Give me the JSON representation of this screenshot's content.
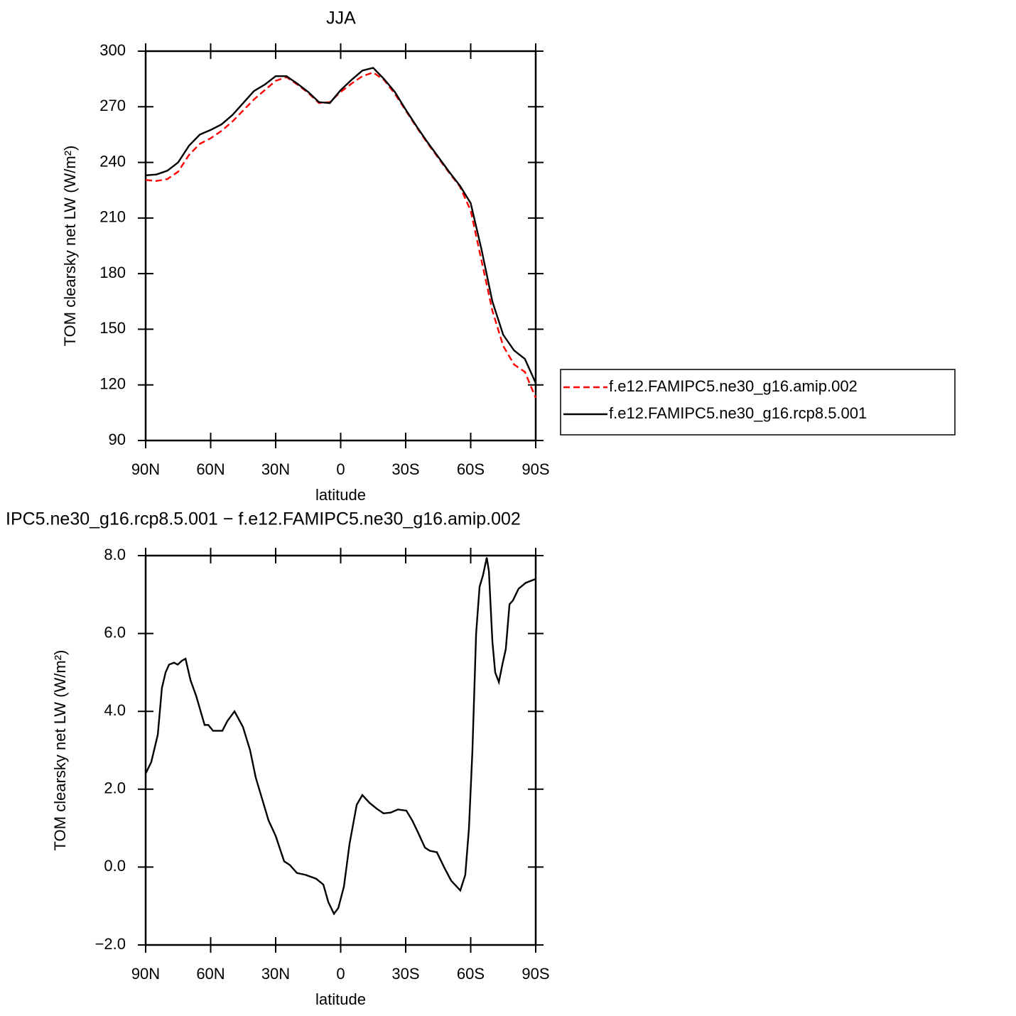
{
  "chart_data": [
    {
      "type": "line",
      "title": "JJA",
      "xlabel": "latitude",
      "ylabel": "TOM clearsky net LW (W/m²)",
      "x": [
        90,
        85,
        80,
        75,
        70,
        65,
        60,
        55,
        50,
        45,
        40,
        35,
        30,
        25,
        20,
        15,
        10,
        5,
        0,
        -5,
        -10,
        -15,
        -20,
        -25,
        -30,
        -35,
        -40,
        -45,
        -50,
        -55,
        -60,
        -65,
        -70,
        -75,
        -80,
        -85,
        -90
      ],
      "xlim": [
        90,
        -90
      ],
      "xticks": [
        {
          "value": 90,
          "label": "90N"
        },
        {
          "value": 60,
          "label": "60N"
        },
        {
          "value": 30,
          "label": "30N"
        },
        0,
        {
          "value": -30,
          "label": "30S"
        },
        {
          "value": -60,
          "label": "60S"
        },
        {
          "value": -90,
          "label": "90S"
        }
      ],
      "ylim": [
        90,
        300
      ],
      "yticks": [
        90,
        120,
        150,
        180,
        210,
        240,
        270,
        300
      ],
      "legend": "right",
      "series": [
        {
          "name": "f.e12.FAMIPC5.ne30_g16.amip.002",
          "color": "#ff0000",
          "linestyle": "dashed",
          "values": [
            230.5,
            230,
            231,
            235,
            244,
            250,
            253,
            257,
            262,
            268,
            274,
            279,
            284,
            286,
            282,
            277.5,
            272,
            272.5,
            278,
            282.5,
            286.5,
            288.5,
            284.5,
            277,
            268,
            259,
            250.5,
            242.5,
            234.5,
            227,
            214,
            187,
            160,
            141,
            131,
            127,
            113
          ]
        },
        {
          "name": "f.e12.FAMIPC5.ne30_g16.rcp8.5.001",
          "color": "#000000",
          "linestyle": "solid",
          "values": [
            233,
            233.5,
            235.5,
            240,
            249,
            255,
            257.5,
            260.5,
            265.5,
            272,
            278.5,
            282,
            286.5,
            286.5,
            282.5,
            278,
            272.5,
            272,
            279,
            284.5,
            289.5,
            291,
            285,
            278,
            268.5,
            259.5,
            251,
            243,
            235,
            227.5,
            218,
            193,
            165,
            147,
            138.6,
            134,
            121
          ]
        }
      ]
    },
    {
      "type": "line",
      "title": "IPC5.ne30_g16.rcp8.5.001 − f.e12.FAMIPC5.ne30_g16.amip.002",
      "xlabel": "latitude",
      "ylabel": "TOM clearsky net LW (W/m²)",
      "x": [
        90,
        87.4,
        84.4,
        82.5,
        80.8,
        79.2,
        76.9,
        75.2,
        73.3,
        71.6,
        69.3,
        66.7,
        62.8,
        61.1,
        58.9,
        54.6,
        52.3,
        49,
        45.1,
        41.8,
        39.2,
        33.3,
        30,
        26.1,
        23.4,
        20.2,
        16.2,
        11.3,
        8,
        5.7,
        3.1,
        1.1,
        -1.5,
        -4.1,
        -7.4,
        -10,
        -13.3,
        -16.6,
        -19.8,
        -23.1,
        -26.4,
        -30.3,
        -33,
        -35.6,
        -38.9,
        -41.1,
        -44.4,
        -47.7,
        -51,
        -55.2,
        -57.5,
        -59.2,
        -60.8,
        -62.5,
        -64.1,
        -65.7,
        -67.4,
        -68.4,
        -70,
        -71.3,
        -73,
        -74.6,
        -76.2,
        -77.9,
        -79.5,
        -82.1,
        -85.4,
        -90
      ],
      "xlim": [
        90,
        -90
      ],
      "xticks": [
        {
          "value": 90,
          "label": "90N"
        },
        {
          "value": 60,
          "label": "60N"
        },
        {
          "value": 30,
          "label": "30N"
        },
        0,
        {
          "value": -30,
          "label": "30S"
        },
        {
          "value": -60,
          "label": "60S"
        },
        {
          "value": -90,
          "label": "90S"
        }
      ],
      "ylim": [
        -2,
        8
      ],
      "yticks": [
        {
          "value": -2,
          "label": "−2.0"
        },
        {
          "value": 0,
          "label": "0.0"
        },
        {
          "value": 2,
          "label": "2.0"
        },
        {
          "value": 4,
          "label": "4.0"
        },
        {
          "value": 6,
          "label": "6.0"
        },
        {
          "value": 8,
          "label": "8.0"
        }
      ],
      "series": [
        {
          "color": "#000000",
          "linestyle": "solid",
          "values": [
            2.4,
            2.7,
            3.4,
            4.6,
            5,
            5.2,
            5.25,
            5.2,
            5.3,
            5.35,
            4.8,
            4.4,
            3.65,
            3.65,
            3.5,
            3.5,
            3.75,
            4,
            3.6,
            3,
            2.3,
            1.2,
            0.8,
            0.15,
            0.05,
            -0.15,
            -0.2,
            -0.3,
            -0.45,
            -0.9,
            -1.2,
            -1.05,
            -0.5,
            0.6,
            1.6,
            1.85,
            1.65,
            1.5,
            1.38,
            1.4,
            1.48,
            1.45,
            1.2,
            0.9,
            0.5,
            0.42,
            0.38,
            0,
            -0.35,
            -0.6,
            -0.2,
            1,
            3,
            6,
            7.2,
            7.5,
            7.95,
            7.6,
            5.8,
            5,
            4.75,
            5.2,
            5.6,
            6.75,
            6.85,
            7.15,
            7.3,
            7.4
          ]
        }
      ]
    }
  ]
}
